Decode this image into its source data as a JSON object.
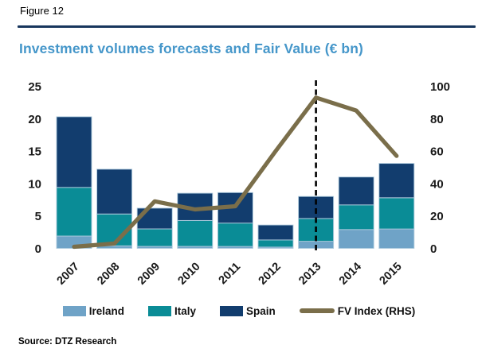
{
  "header": {
    "figure_label": "Figure 12",
    "title": "Investment volumes forecasts and Fair Value (€ bn)"
  },
  "source": "Source: DTZ Research",
  "colors": {
    "ireland": "#6FA3C7",
    "italy": "#0A8C96",
    "spain": "#123D6E",
    "fv_line": "#7A6E4A",
    "title_text": "#4697CA",
    "top_rule": "#17365D",
    "segment_border": "#AECBDD",
    "dashed_line": "#000000",
    "axis_text": "#1a1a1a"
  },
  "legend": {
    "items": [
      {
        "label": "Ireland",
        "swatch": "rect",
        "color": "#6FA3C7"
      },
      {
        "label": "Italy",
        "swatch": "rect",
        "color": "#0A8C96"
      },
      {
        "label": "Spain",
        "swatch": "rect",
        "color": "#123D6E"
      },
      {
        "label": "FV Index (RHS)",
        "swatch": "line",
        "color": "#7A6E4A"
      }
    ]
  },
  "chart_data": {
    "type": "bar",
    "subtype": "stacked-bars-with-line-overlay",
    "title": "Investment volumes forecasts and Fair Value (€ bn)",
    "categories": [
      "2007",
      "2008",
      "2009",
      "2010",
      "2011",
      "2012",
      "2013",
      "2014",
      "2015"
    ],
    "series": [
      {
        "name": "Ireland",
        "type": "bar",
        "axis": "left",
        "color": "#6FA3C7",
        "values": [
          1.9,
          0.4,
          0.3,
          0.3,
          0.3,
          0.2,
          1.1,
          2.9,
          3.0
        ]
      },
      {
        "name": "Italy",
        "type": "bar",
        "axis": "left",
        "color": "#0A8C96",
        "values": [
          7.5,
          4.9,
          2.7,
          4.0,
          3.6,
          1.1,
          3.5,
          3.8,
          4.8
        ]
      },
      {
        "name": "Spain",
        "type": "bar",
        "axis": "left",
        "color": "#123D6E",
        "values": [
          10.9,
          6.9,
          3.2,
          4.2,
          4.7,
          2.3,
          3.4,
          4.3,
          5.3
        ]
      },
      {
        "name": "FV Index (RHS)",
        "type": "line",
        "axis": "right",
        "color": "#7A6E4A",
        "values": [
          1,
          3,
          29,
          24,
          26,
          60,
          93,
          85,
          57
        ]
      }
    ],
    "left_axis": {
      "ticks": [
        0,
        5,
        10,
        15,
        20,
        25
      ],
      "range": [
        0,
        25
      ]
    },
    "right_axis": {
      "ticks": [
        0,
        20,
        40,
        60,
        80,
        100
      ],
      "range": [
        0,
        100
      ]
    },
    "annotations": {
      "dashed_vertical_line_at_category": "2013"
    },
    "stacked": true,
    "grid": false,
    "legend_position": "bottom"
  }
}
